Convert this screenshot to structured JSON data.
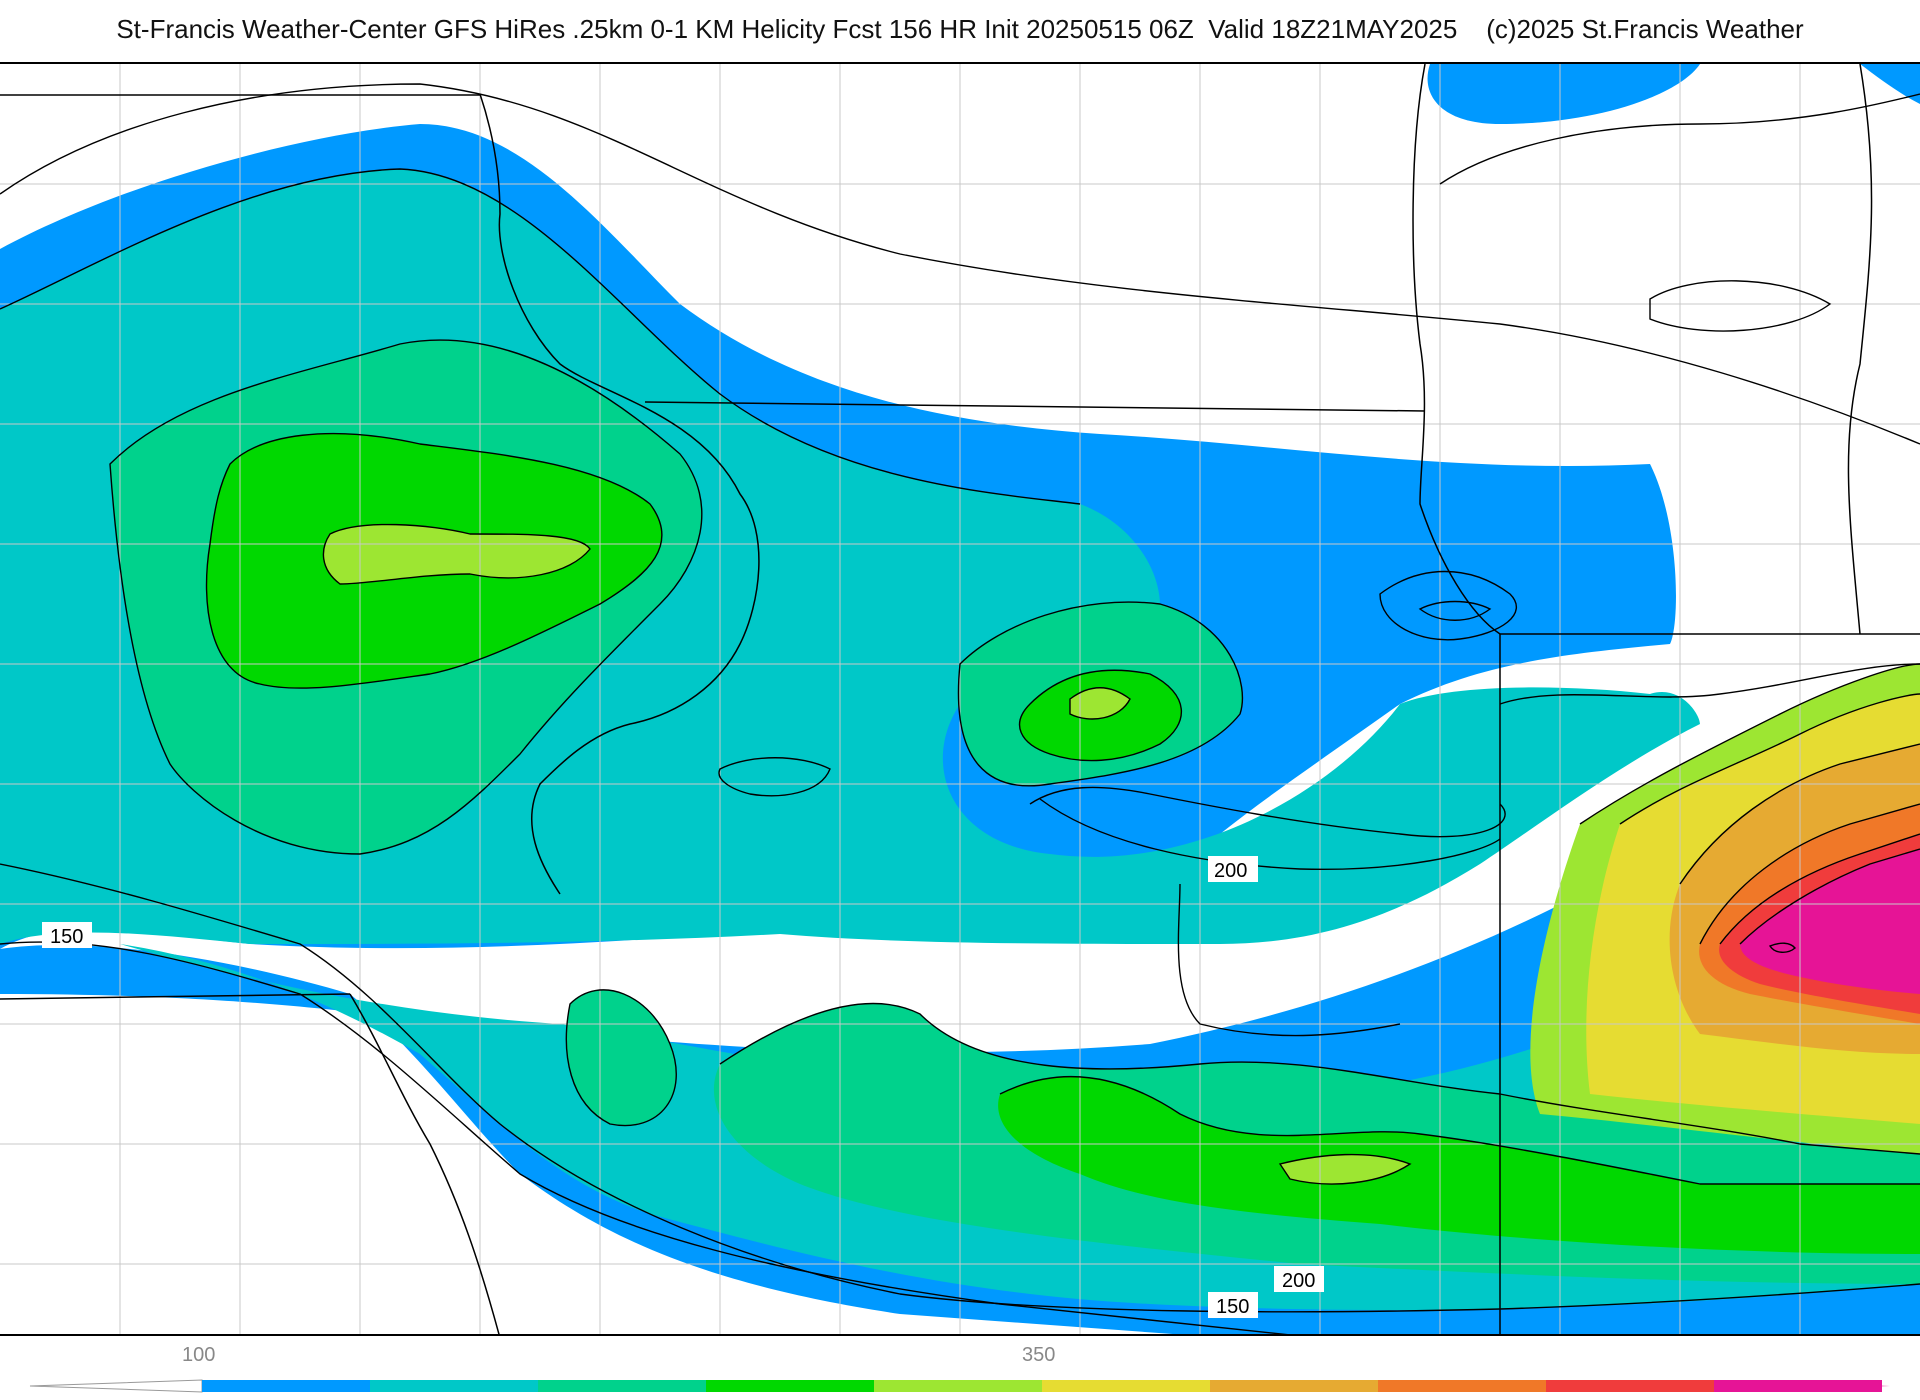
{
  "header": {
    "title": "St-Francis Weather-Center GFS HiRes .25km 0-1 KM Helicity Fcst 156 HR Init 20250515 06Z  Valid 18Z21MAY2025    (c)2025 St.Francis Weather"
  },
  "map": {
    "contour_labels": [
      "150",
      "200",
      "200",
      "150"
    ]
  },
  "colorbar": {
    "tick_labels": [
      "100",
      "350"
    ],
    "colors": [
      "#0099ff",
      "#00c8c8",
      "#00d28c",
      "#00d800",
      "#9de632",
      "#e6dc32",
      "#e6aa32",
      "#f07828",
      "#f03c3c",
      "#e61496"
    ]
  }
}
